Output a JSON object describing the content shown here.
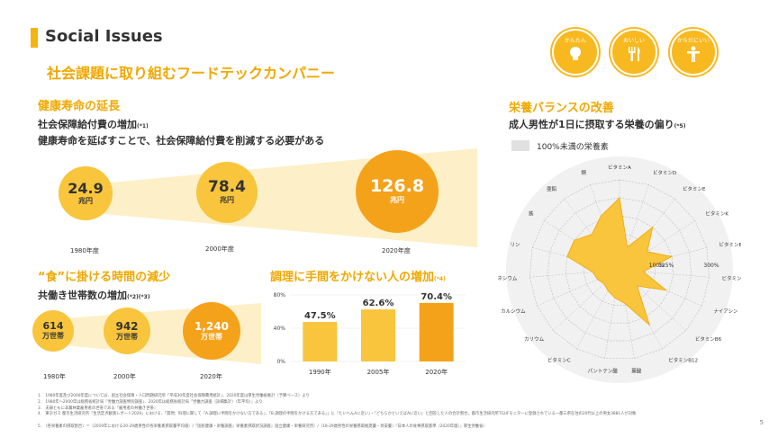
{
  "header": {
    "title": "Social Issues",
    "subtitle": "社会課題に取り組むフードテックカンパニー",
    "badges": [
      {
        "label": "かんたん",
        "icon": "lightbulb-icon"
      },
      {
        "label": "おいしい",
        "icon": "fork-knife-icon"
      },
      {
        "label": "からだにいい",
        "icon": "person-icon"
      }
    ]
  },
  "health": {
    "title": "健康寿命の延長",
    "subtitle": "社会保障給付費の増加",
    "subtitle_note": "(*1)",
    "description": "健康寿命を延ばすことで、社会保障給付費を削減する必要がある",
    "items": [
      {
        "value": "24.9",
        "unit": "兆円",
        "year": "1980年度"
      },
      {
        "value": "78.4",
        "unit": "兆円",
        "year": "2000年度"
      },
      {
        "value": "126.8",
        "unit": "兆円",
        "year": "2020年度"
      }
    ]
  },
  "cooking_time": {
    "title": "“食”に掛ける時間の減少",
    "subtitle": "共働き世帯数の増加",
    "subtitle_note": "(*2)(*3)",
    "items": [
      {
        "value": "614",
        "unit": "万世帯",
        "year": "1980年"
      },
      {
        "value": "942",
        "unit": "万世帯",
        "year": "2000年"
      },
      {
        "value": "1,240",
        "unit": "万世帯",
        "year": "2020年"
      }
    ]
  },
  "effort": {
    "title": "調理に手間をかけない人の増加",
    "title_note": "(*4)"
  },
  "nutrition": {
    "title": "栄養バランスの改善",
    "subtitle": "成人男性が1日に摂取する栄養の偏り",
    "subtitle_note": "(*5)",
    "legend_label": "100%未満の栄養素"
  },
  "chart_data": [
    {
      "type": "bar",
      "categories": [
        "1990年",
        "2005年",
        "2020年"
      ],
      "values": [
        47.5,
        62.6,
        70.4
      ],
      "value_labels": [
        "47.5%",
        "62.6%",
        "70.4%"
      ],
      "y_ticks": [
        "0%",
        "40%",
        "80%"
      ],
      "ylim": [
        0,
        80
      ],
      "bar_colors": [
        "#f8c53c",
        "#f8c53c",
        "#f5a21b"
      ]
    },
    {
      "type": "radar",
      "categories": [
        "ビタミンA",
        "ビタミンD",
        "ビタミンE",
        "ビタミンK",
        "ビタミンB1",
        "ビタミンB2",
        "ナイアシン",
        "ビタミンB6",
        "ビタミンB12",
        "葉酸",
        "パントテン酸",
        "ビタミンC",
        "カリウム",
        "カルシウム",
        "マグネシウム",
        "リン",
        "鉄",
        "亜鉛",
        "銅"
      ],
      "values": [
        240,
        80,
        180,
        110,
        180,
        80,
        170,
        80,
        210,
        115,
        95,
        80,
        70,
        80,
        90,
        180,
        180,
        150,
        190
      ],
      "scale_labels": [
        "100%",
        "125%",
        "300%"
      ],
      "rmax": 300,
      "fill_color": "#f8c53c"
    }
  ],
  "footnotes": [
    "1.　1980年度及び2000年度については、国立社会保障・人口問題研究所『平成30年度社会保障費用統計』、2020年度は厚生労働省推計（予算ベース）より",
    "2.　1980年～2000年は総務省統計局『労働力調査特別調査』、2020年は総務省統計局『労働力調査（詳細集計）（年平均）』より",
    "3.　夫婦ともに非農林業雇用者の世帯である『雇用者の共働き世帯』",
    "4.　東京ガス 都市生活研究所『生活定点観測レポート2020』における、「質問：料理に関して『A.調理に手間をかけない方である』、『B.調理の手間をかける方である』」に『たいへんAに近い』・『どちらかといえばAに近い』と回答した人の合計割合。都市生活研究所TGUFモニターに登録されている一都三県在住の20代以上の男女3881人が対象",
    "5.　（各栄養素の摂取割合）＝（2019年における20-29歳男性の各栄養素摂取量平均値）/『国民健康・栄養調査』栄養素摂取状況調査』国立健康・栄養研究所）/（18-29歳男性の栄養摂取推奨量・目安量）『日本人の食事摂取基準（2020年版）』厚生労働省）"
  ],
  "page_number": "5"
}
